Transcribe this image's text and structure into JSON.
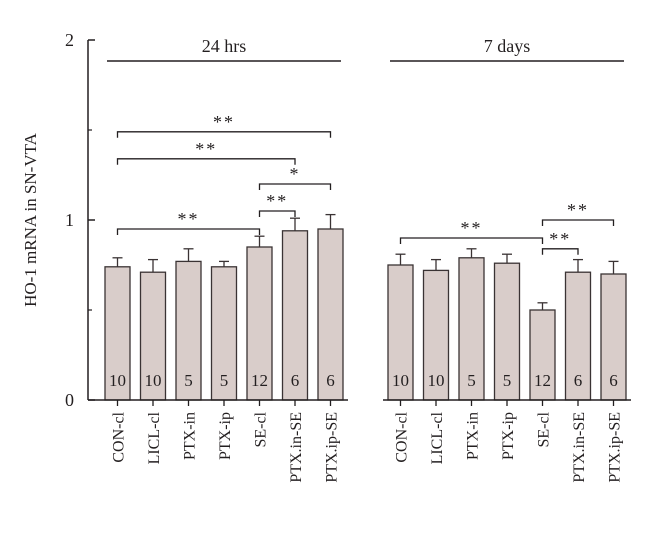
{
  "chart_data": {
    "type": "bar",
    "ylabel": "HO-1 mRNA in SN-VTA",
    "ylim": [
      0,
      2
    ],
    "yticks": [
      {
        "value": 0,
        "label": "0"
      },
      {
        "value": 1,
        "label": "1"
      },
      {
        "value": 2,
        "label": "2"
      }
    ],
    "bar_color": "#d9cdca",
    "groups": [
      {
        "label": "24 hrs",
        "categories": [
          "CON-cl",
          "LICL-cl",
          "PTX-in",
          "PTX-ip",
          "SE-cl",
          "PTX.in-SE",
          "PTX.ip-SE"
        ],
        "values": [
          0.74,
          0.71,
          0.77,
          0.74,
          0.85,
          0.94,
          0.95
        ],
        "errors": [
          0.05,
          0.07,
          0.07,
          0.03,
          0.06,
          0.07,
          0.08
        ],
        "n": [
          "10",
          "10",
          "5",
          "5",
          "12",
          "6",
          "6"
        ]
      },
      {
        "label": "7 days",
        "categories": [
          "CON-cl",
          "LICL-cl",
          "PTX-in",
          "PTX-ip",
          "SE-cl",
          "PTX.in-SE",
          "PTX.ip-SE"
        ],
        "values": [
          0.75,
          0.72,
          0.79,
          0.76,
          0.5,
          0.71,
          0.7
        ],
        "errors": [
          0.06,
          0.06,
          0.05,
          0.05,
          0.04,
          0.07,
          0.07
        ],
        "n": [
          "10",
          "10",
          "5",
          "5",
          "12",
          "6",
          "6"
        ]
      }
    ],
    "significance": [
      {
        "group": 0,
        "from": 0,
        "to": 6,
        "level": 1.49,
        "label": "**"
      },
      {
        "group": 0,
        "from": 0,
        "to": 5,
        "level": 1.34,
        "label": "**"
      },
      {
        "group": 0,
        "from": 4,
        "to": 6,
        "level": 1.2,
        "label": "*"
      },
      {
        "group": 0,
        "from": 4,
        "to": 5,
        "level": 1.05,
        "label": "**"
      },
      {
        "group": 0,
        "from": 0,
        "to": 4,
        "level": 0.95,
        "label": "**"
      },
      {
        "group": 1,
        "from": 0,
        "to": 4,
        "level": 0.9,
        "label": "**"
      },
      {
        "group": 1,
        "from": 4,
        "to": 6,
        "level": 1.0,
        "label": "**"
      },
      {
        "group": 1,
        "from": 4,
        "to": 5,
        "level": 0.84,
        "label": "**"
      }
    ]
  }
}
